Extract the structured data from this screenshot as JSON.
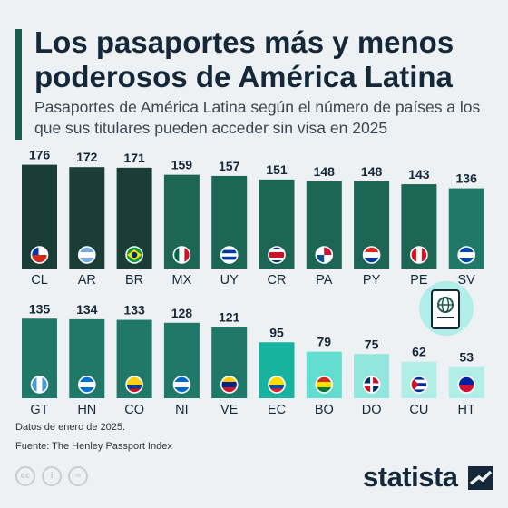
{
  "header": {
    "title": "Los pasaportes más y menos poderosos de América Latina",
    "subtitle": "Pasaportes de América Latina según el número de países a los que sus titulares pueden acceder sin visa en 2025"
  },
  "footer": {
    "note": "Datos de enero de 2025.",
    "source": "Fuente: The Henley Passport Index",
    "brand": "statista",
    "license_icons": [
      "cc-icon",
      "by-icon",
      "nd-icon"
    ]
  },
  "colors": {
    "background": "#eef1f3",
    "accent": "#1e5a4f",
    "shades": [
      "#1b3d37",
      "#1d6554",
      "#1f7868",
      "#17b3a0",
      "#62ddd0",
      "#91e6de",
      "#b2eee8"
    ]
  },
  "chart_data": {
    "type": "bar",
    "categories": [
      "CL",
      "AR",
      "BR",
      "MX",
      "UY",
      "CR",
      "PA",
      "PY",
      "PE",
      "SV",
      "GT",
      "HN",
      "CO",
      "NI",
      "VE",
      "EC",
      "BO",
      "DO",
      "CU",
      "HT"
    ],
    "values": [
      176,
      172,
      171,
      159,
      157,
      151,
      148,
      148,
      143,
      136,
      135,
      134,
      133,
      128,
      121,
      95,
      79,
      75,
      62,
      53
    ],
    "flags": [
      "flag-cl-icon",
      "flag-ar-icon",
      "flag-br-icon",
      "flag-mx-icon",
      "flag-uy-icon",
      "flag-cr-icon",
      "flag-pa-icon",
      "flag-py-icon",
      "flag-pe-icon",
      "flag-sv-icon",
      "flag-gt-icon",
      "flag-hn-icon",
      "flag-co-icon",
      "flag-ni-icon",
      "flag-ve-icon",
      "flag-ec-icon",
      "flag-bo-icon",
      "flag-do-icon",
      "flag-cu-icon",
      "flag-ht-icon"
    ],
    "title": "Los pasaportes más y menos poderosos de América Latina",
    "xlabel": "",
    "ylabel": "",
    "ylim": [
      0,
      176
    ],
    "grid": false,
    "legend": "none"
  }
}
